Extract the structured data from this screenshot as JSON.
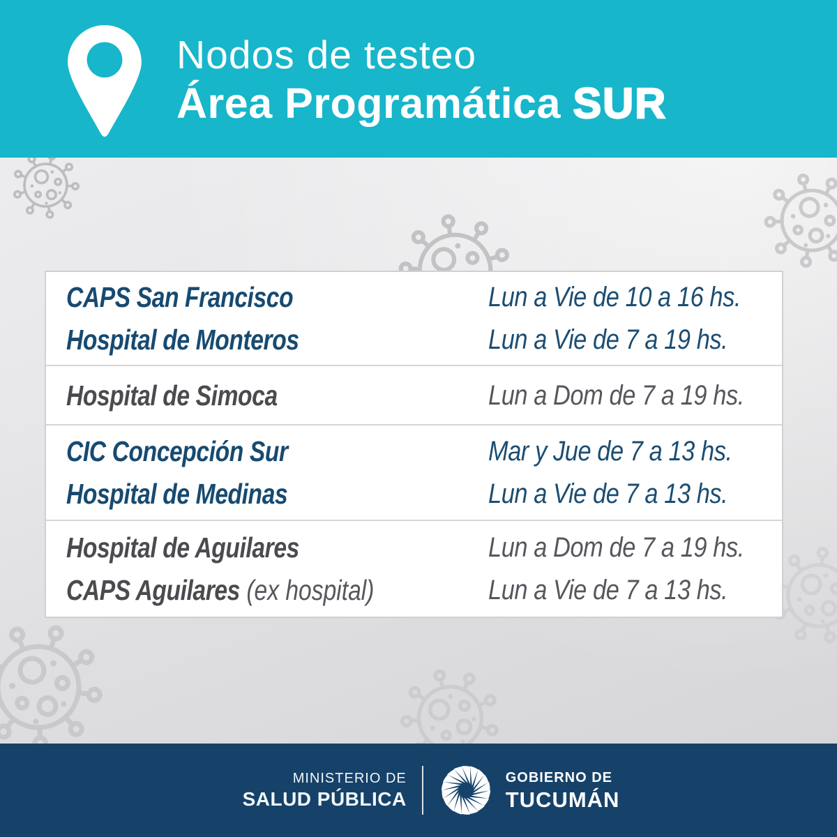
{
  "header": {
    "title_line1": "Nodos de testeo",
    "title_line2": "Área Programática",
    "title_line2_bold": "SUR"
  },
  "table": {
    "rows": [
      {
        "scheme": "blue",
        "entries": [
          {
            "name": "CAPS San Francisco",
            "schedule": "Lun a Vie de 10 a 16 hs."
          },
          {
            "name": "Hospital de Monteros",
            "schedule": "Lun a Vie de 7 a 19 hs."
          }
        ]
      },
      {
        "scheme": "gray",
        "entries": [
          {
            "name": "Hospital de Simoca",
            "schedule": "Lun a Dom de 7 a 19 hs."
          }
        ]
      },
      {
        "scheme": "blue",
        "entries": [
          {
            "name": "CIC Concepción Sur",
            "schedule": "Mar y Jue de 7 a 13 hs."
          },
          {
            "name": "Hospital de Medinas",
            "schedule": "Lun a Vie de 7 a 13 hs."
          }
        ]
      },
      {
        "scheme": "gray",
        "entries": [
          {
            "name": "Hospital de Aguilares",
            "schedule": "Lun a Dom de 7 a 19 hs."
          },
          {
            "name": "CAPS Aguilares",
            "name_suffix": " (ex hospital)",
            "schedule": "Lun a Vie de 7 a 13 hs."
          }
        ]
      }
    ]
  },
  "footer": {
    "ministry_line1": "MINISTERIO DE",
    "ministry_line2": "SALUD PÚBLICA",
    "government_line1": "GOBIERNO DE",
    "government_line2": "TUCUMÁN"
  },
  "icons": {
    "location_pin": "location-pin-icon",
    "virus": "coronavirus-icon",
    "government_logo": "tucuman-pinwheel-logo"
  },
  "colors": {
    "header_bg": "#17b6ca",
    "footer_bg": "#164269",
    "text_blue": "#174a70",
    "text_gray_name": "#4a4b4f",
    "text_gray_schedule": "#56575d",
    "table_bg": "#ffffff",
    "table_border": "#cfd0d3",
    "virus_outline": "#b2b2b6",
    "background_light": "#efeff1",
    "background_dark": "#d4d4d7"
  }
}
